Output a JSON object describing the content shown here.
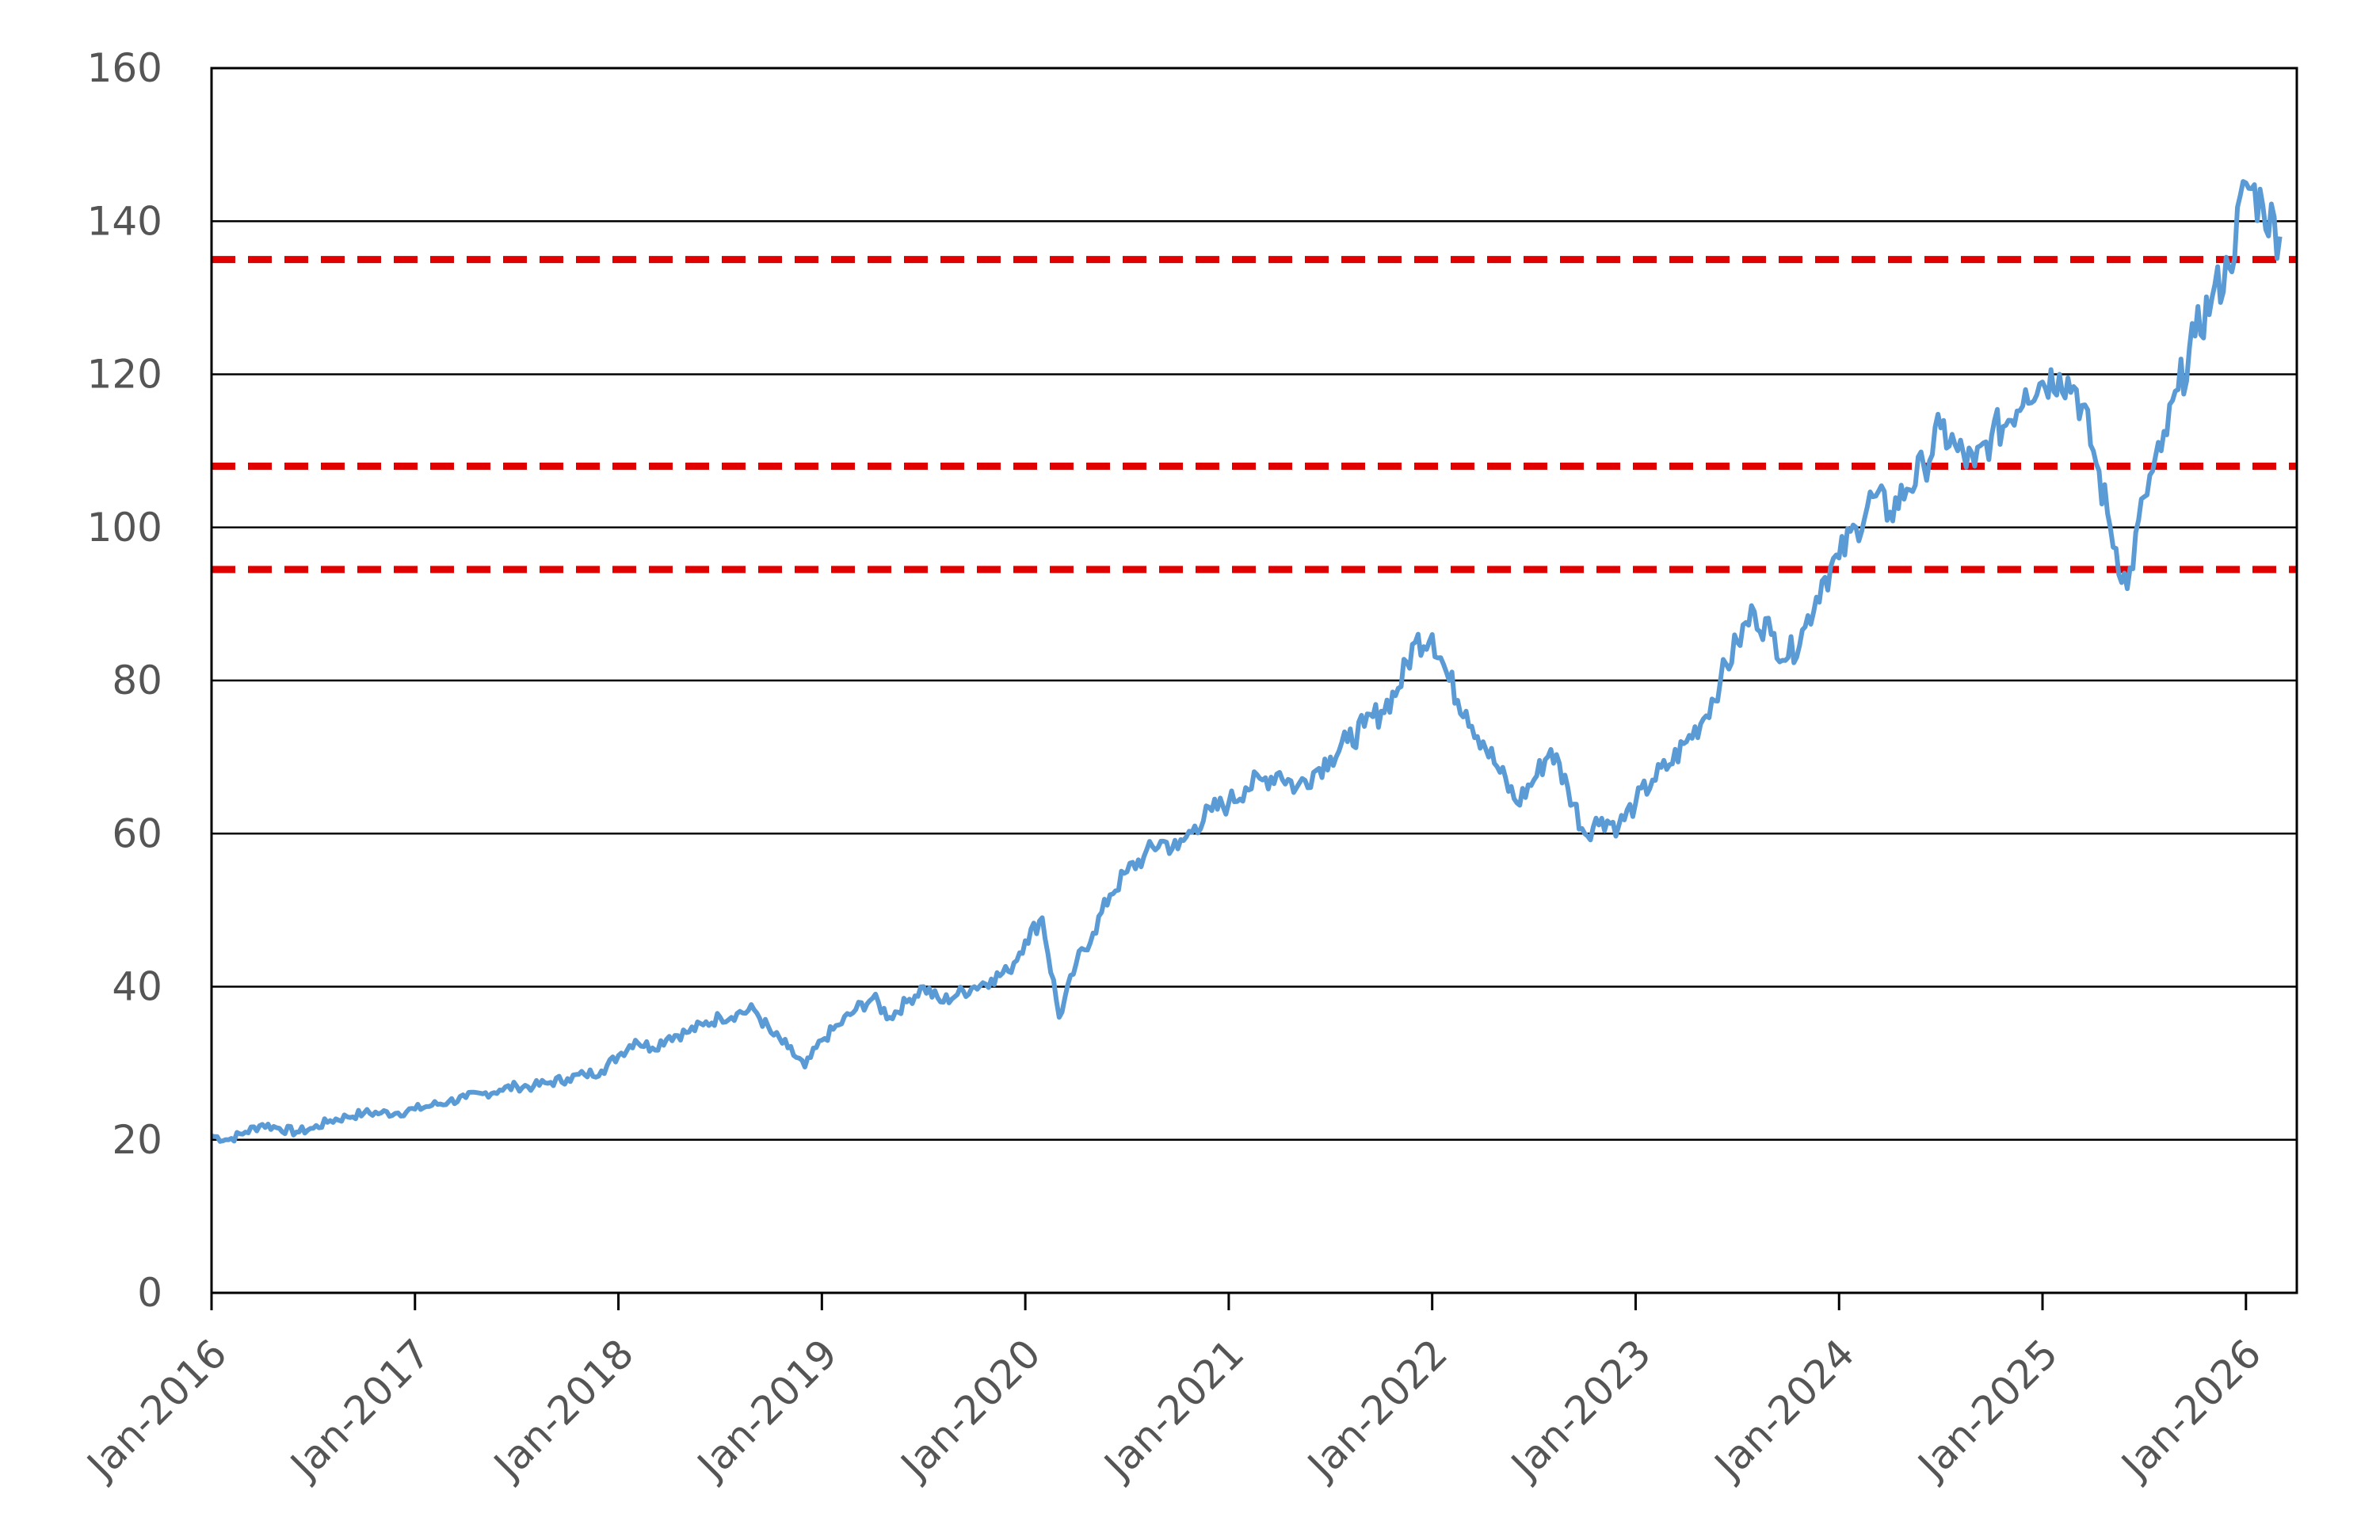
{
  "chart_data": {
    "type": "line",
    "title": "",
    "xlabel": "",
    "ylabel": "",
    "ylim": [
      0,
      160
    ],
    "yticks": [
      0,
      20,
      40,
      60,
      80,
      100,
      120,
      140,
      160
    ],
    "xlim": [
      "2016-01",
      "2026-04"
    ],
    "xticks": [
      "2016-01",
      "2017-01",
      "2018-01",
      "2019-01",
      "2020-01",
      "2021-01",
      "2022-01",
      "2023-01",
      "2024-01",
      "2025-01",
      "2026-01"
    ],
    "xtick_labels": [
      "Jan-2016",
      "Jan-2017",
      "Jan-2018",
      "Jan-2019",
      "Jan-2020",
      "Jan-2021",
      "Jan-2022",
      "Jan-2023",
      "Jan-2024",
      "Jan-2025",
      "Jan-2026"
    ],
    "grid": "horizontal",
    "legend": "none",
    "series": [
      {
        "color": "#5b9bd5",
        "x": [
          "2016-01",
          "2016-02",
          "2016-03",
          "2016-04",
          "2016-05",
          "2016-06",
          "2016-07",
          "2016-08",
          "2016-09",
          "2016-10",
          "2016-11",
          "2016-12",
          "2017-01",
          "2017-02",
          "2017-03",
          "2017-04",
          "2017-05",
          "2017-06",
          "2017-07",
          "2017-08",
          "2017-09",
          "2017-10",
          "2017-11",
          "2017-12",
          "2018-01",
          "2018-02",
          "2018-03",
          "2018-04",
          "2018-05",
          "2018-06",
          "2018-07",
          "2018-08",
          "2018-09",
          "2018-10",
          "2018-11",
          "2018-12",
          "2019-01",
          "2019-02",
          "2019-03",
          "2019-04",
          "2019-05",
          "2019-06",
          "2019-07",
          "2019-08",
          "2019-09",
          "2019-10",
          "2019-11",
          "2019-12",
          "2020-01",
          "2020-02",
          "2020-03",
          "2020-04",
          "2020-05",
          "2020-06",
          "2020-07",
          "2020-08",
          "2020-09",
          "2020-10",
          "2020-11",
          "2020-12",
          "2021-01",
          "2021-02",
          "2021-03",
          "2021-04",
          "2021-05",
          "2021-06",
          "2021-07",
          "2021-08",
          "2021-09",
          "2021-10",
          "2021-11",
          "2021-12",
          "2022-01",
          "2022-02",
          "2022-03",
          "2022-04",
          "2022-05",
          "2022-06",
          "2022-07",
          "2022-08",
          "2022-09",
          "2022-10",
          "2022-11",
          "2022-12",
          "2023-01",
          "2023-02",
          "2023-03",
          "2023-04",
          "2023-05",
          "2023-06",
          "2023-07",
          "2023-08",
          "2023-09",
          "2023-10",
          "2023-11",
          "2023-12",
          "2024-01",
          "2024-02",
          "2024-03",
          "2024-04",
          "2024-05",
          "2024-06",
          "2024-07",
          "2024-08",
          "2024-09",
          "2024-10",
          "2024-11",
          "2024-12",
          "2025-01",
          "2025-02",
          "2025-03",
          "2025-04",
          "2025-05",
          "2025-06",
          "2025-07",
          "2025-08",
          "2025-09",
          "2025-10",
          "2025-11",
          "2025-12",
          "2026-01",
          "2026-02",
          "2026-03"
        ],
        "y": [
          20.5,
          20,
          21,
          22,
          21.5,
          21,
          21.5,
          22.5,
          23,
          23.5,
          23.5,
          23.5,
          24,
          24.5,
          25,
          25.5,
          26,
          26.5,
          27,
          27,
          27.5,
          28,
          28.5,
          29,
          31,
          33,
          32,
          33.5,
          34,
          35,
          36,
          36.5,
          37,
          34,
          32,
          29.5,
          33,
          35,
          37,
          38.5,
          36,
          38,
          40,
          38,
          39,
          40,
          41,
          42,
          46,
          49,
          36,
          43,
          47,
          52,
          55,
          57,
          59,
          58,
          61,
          63,
          64,
          66,
          67,
          68,
          66,
          68,
          70,
          72,
          74,
          76,
          79,
          85,
          86,
          80,
          76,
          72,
          68,
          64,
          67,
          71,
          66,
          60,
          62,
          61,
          64,
          67,
          69,
          72,
          75,
          80,
          85,
          89,
          86,
          83,
          87,
          93,
          96,
          100,
          104,
          102,
          105,
          108,
          113,
          110,
          108,
          112,
          114,
          118,
          119,
          120,
          118,
          110,
          100,
          92,
          104,
          110,
          118,
          125,
          130,
          134,
          145,
          142,
          138
        ]
      }
    ],
    "reference_lines": [
      {
        "y": 135,
        "color": "#e00000",
        "style": "dashed"
      },
      {
        "y": 108,
        "color": "#e00000",
        "style": "dashed"
      },
      {
        "y": 94.5,
        "color": "#e00000",
        "style": "dashed"
      }
    ]
  }
}
